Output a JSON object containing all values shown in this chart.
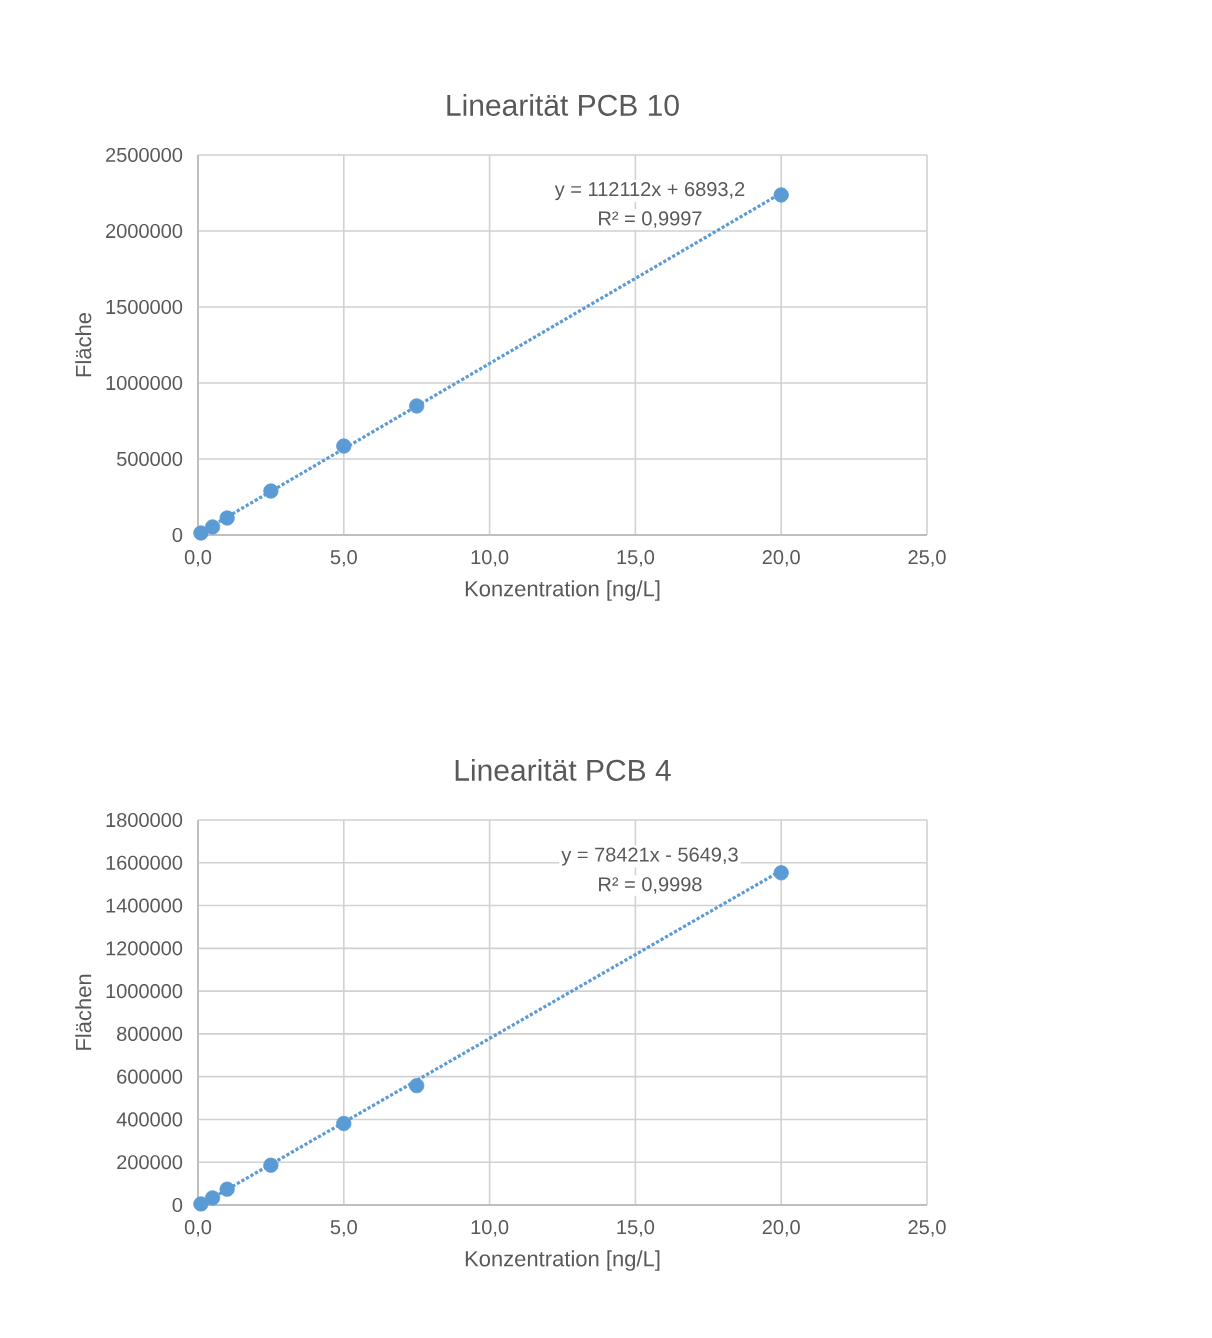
{
  "chart_data": [
    {
      "type": "scatter",
      "title": "Linearität PCB 10",
      "xlabel": "Konzentration [ng/L]",
      "ylabel": "Fläche",
      "xlim": [
        0,
        25
      ],
      "xticks": [
        {
          "value": 0,
          "label": "0,0"
        },
        {
          "value": 5,
          "label": "5,0"
        },
        {
          "value": 10,
          "label": "10,0"
        },
        {
          "value": 15,
          "label": "15,0"
        },
        {
          "value": 20,
          "label": "20,0"
        },
        {
          "value": 25,
          "label": "25,0"
        }
      ],
      "ylim": [
        0,
        2500000
      ],
      "yticks": [
        0,
        500000,
        1000000,
        1500000,
        2000000,
        2500000
      ],
      "grid": true,
      "annotations": [
        "y = 112112x + 6893,2",
        "R² = 0,9997"
      ],
      "series": [
        {
          "color": "#5b9bd5",
          "marker": "circle",
          "x": [
            0.1,
            0.5,
            1.0,
            2.5,
            5.0,
            7.5,
            20.0
          ],
          "values": [
            13000,
            53000,
            112000,
            289000,
            585000,
            849000,
            2237000
          ]
        },
        {
          "type": "line",
          "color": "#5b9bd5",
          "line_style": "dotted",
          "marker": "none",
          "x": [
            0.1,
            20.0
          ],
          "values": [
            18000,
            2249000
          ]
        }
      ]
    },
    {
      "type": "scatter",
      "title": "Linearität PCB 4",
      "xlabel": "Konzentration [ng/L]",
      "ylabel": "Flächen",
      "xlim": [
        0,
        25
      ],
      "xticks": [
        {
          "value": 0,
          "label": "0,0"
        },
        {
          "value": 5,
          "label": "5,0"
        },
        {
          "value": 10,
          "label": "10,0"
        },
        {
          "value": 15,
          "label": "15,0"
        },
        {
          "value": 20,
          "label": "20,0"
        },
        {
          "value": 25,
          "label": "25,0"
        }
      ],
      "ylim": [
        0,
        1800000
      ],
      "yticks": [
        0,
        200000,
        400000,
        600000,
        800000,
        1000000,
        1200000,
        1400000,
        1600000,
        1800000
      ],
      "grid": true,
      "annotations": [
        "y = 78421x - 5649,3",
        "R² = 0,9998"
      ],
      "series": [
        {
          "color": "#5b9bd5",
          "marker": "circle",
          "x": [
            0.1,
            0.5,
            1.0,
            2.5,
            5.0,
            7.5,
            20.0
          ],
          "values": [
            5000,
            33000,
            74000,
            186000,
            381000,
            558000,
            1553000
          ]
        },
        {
          "type": "line",
          "color": "#5b9bd5",
          "line_style": "dotted",
          "marker": "none",
          "x": [
            0.1,
            20.0
          ],
          "values": [
            2000,
            1563000
          ]
        }
      ]
    }
  ]
}
